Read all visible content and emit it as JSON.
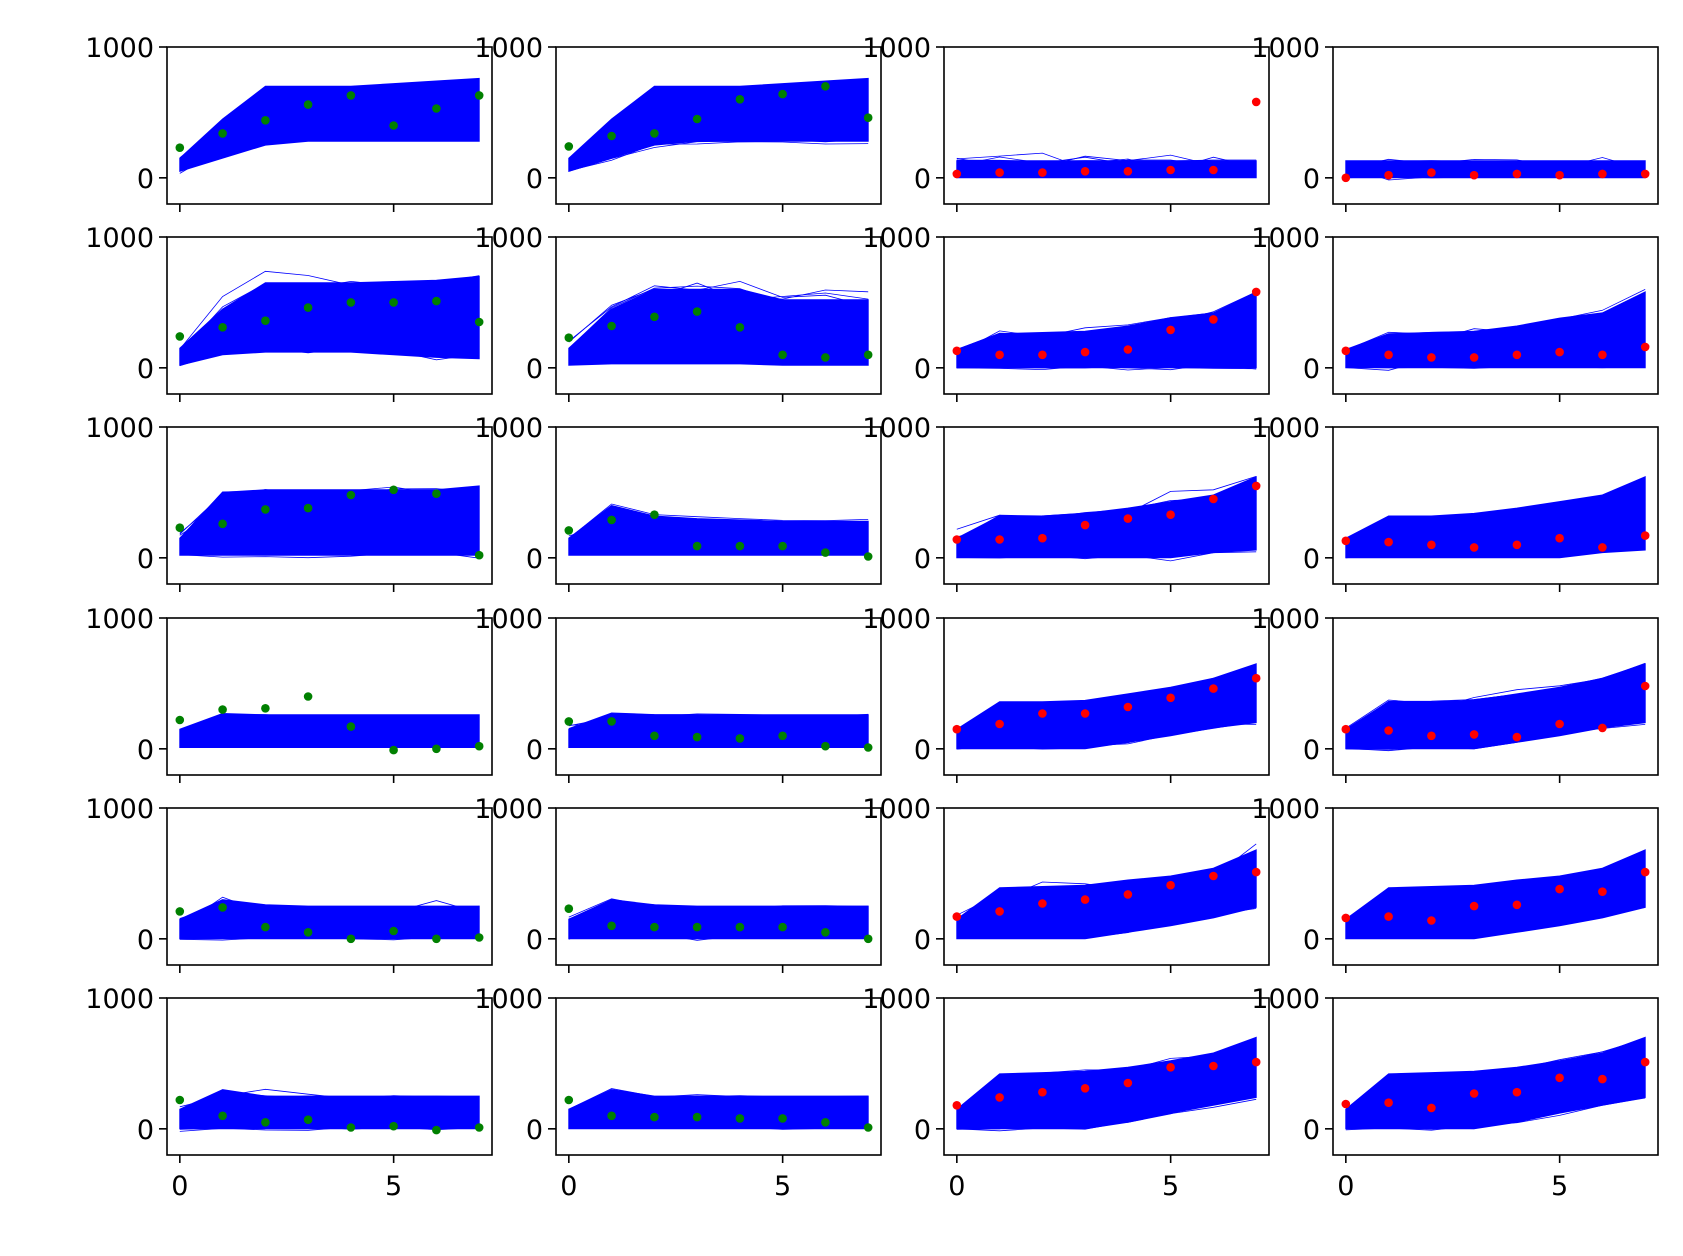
{
  "chart_data": {
    "type": "line",
    "layout": "grid",
    "rows": 6,
    "cols": 4,
    "x": [
      0,
      1,
      2,
      3,
      4,
      5,
      6,
      7
    ],
    "xlim": [
      -0.3,
      7.3
    ],
    "ylim": [
      -200,
      1000
    ],
    "xticks": [
      0,
      5
    ],
    "yticks": [
      0,
      1000
    ],
    "xtick_labels": [
      "0",
      "5"
    ],
    "ytick_labels": [
      "0",
      "1000"
    ],
    "grid": false,
    "legend": "none",
    "colors": {
      "ensemble": "#0000ff",
      "observed_left": "#008000",
      "observed_right": "#ff0000"
    },
    "panels": [
      {
        "row": 0,
        "col": 0,
        "marker_color": "#008000",
        "band_low": [
          50,
          150,
          250,
          280,
          280,
          280,
          280,
          280
        ],
        "band_high": [
          150,
          450,
          700,
          700,
          700,
          720,
          740,
          760
        ],
        "observed": [
          230,
          340,
          440,
          560,
          630,
          400,
          530,
          630
        ]
      },
      {
        "row": 0,
        "col": 1,
        "marker_color": "#008000",
        "band_low": [
          50,
          150,
          250,
          280,
          280,
          280,
          280,
          280
        ],
        "band_high": [
          150,
          450,
          700,
          700,
          700,
          720,
          740,
          760
        ],
        "observed": [
          240,
          320,
          340,
          450,
          600,
          640,
          700,
          460
        ]
      },
      {
        "row": 0,
        "col": 2,
        "marker_color": "#ff0000",
        "band_low": [
          0,
          0,
          0,
          0,
          0,
          0,
          0,
          0
        ],
        "band_high": [
          130,
          130,
          130,
          130,
          130,
          130,
          130,
          130
        ],
        "observed": [
          30,
          40,
          40,
          50,
          50,
          60,
          60,
          580
        ]
      },
      {
        "row": 0,
        "col": 3,
        "marker_color": "#ff0000",
        "band_low": [
          0,
          0,
          0,
          0,
          0,
          0,
          0,
          0
        ],
        "band_high": [
          130,
          130,
          130,
          130,
          130,
          130,
          130,
          130
        ],
        "observed": [
          0,
          20,
          40,
          20,
          30,
          20,
          30,
          30
        ]
      },
      {
        "row": 1,
        "col": 0,
        "marker_color": "#008000",
        "band_low": [
          20,
          100,
          120,
          120,
          120,
          100,
          80,
          70
        ],
        "band_high": [
          150,
          450,
          650,
          650,
          650,
          660,
          670,
          700
        ],
        "observed": [
          240,
          310,
          360,
          460,
          500,
          500,
          510,
          350
        ]
      },
      {
        "row": 1,
        "col": 1,
        "marker_color": "#008000",
        "band_low": [
          20,
          30,
          30,
          30,
          30,
          20,
          20,
          20
        ],
        "band_high": [
          150,
          450,
          600,
          600,
          600,
          520,
          520,
          520
        ],
        "observed": [
          230,
          320,
          390,
          430,
          310,
          100,
          80,
          100
        ]
      },
      {
        "row": 1,
        "col": 2,
        "marker_color": "#ff0000",
        "band_low": [
          0,
          0,
          0,
          0,
          0,
          0,
          0,
          0
        ],
        "band_high": [
          140,
          260,
          270,
          280,
          320,
          380,
          420,
          580
        ],
        "observed": [
          130,
          100,
          100,
          120,
          140,
          290,
          370,
          580
        ]
      },
      {
        "row": 1,
        "col": 3,
        "marker_color": "#ff0000",
        "band_low": [
          0,
          0,
          0,
          0,
          0,
          0,
          0,
          0
        ],
        "band_high": [
          140,
          260,
          270,
          280,
          320,
          380,
          420,
          580
        ],
        "observed": [
          130,
          100,
          80,
          80,
          100,
          120,
          100,
          160
        ]
      },
      {
        "row": 2,
        "col": 0,
        "marker_color": "#008000",
        "band_low": [
          20,
          20,
          20,
          20,
          20,
          20,
          20,
          20
        ],
        "band_high": [
          150,
          500,
          520,
          520,
          520,
          520,
          520,
          550
        ],
        "observed": [
          230,
          260,
          370,
          380,
          480,
          520,
          490,
          20
        ]
      },
      {
        "row": 2,
        "col": 1,
        "marker_color": "#008000",
        "band_low": [
          20,
          20,
          20,
          20,
          20,
          20,
          20,
          20
        ],
        "band_high": [
          150,
          400,
          320,
          300,
          290,
          280,
          280,
          280
        ],
        "observed": [
          210,
          290,
          330,
          90,
          90,
          90,
          40,
          10
        ]
      },
      {
        "row": 2,
        "col": 2,
        "marker_color": "#ff0000",
        "band_low": [
          0,
          0,
          0,
          0,
          0,
          0,
          40,
          60
        ],
        "band_high": [
          150,
          320,
          320,
          340,
          380,
          430,
          480,
          620
        ],
        "observed": [
          140,
          140,
          150,
          250,
          300,
          330,
          450,
          550
        ]
      },
      {
        "row": 2,
        "col": 3,
        "marker_color": "#ff0000",
        "band_low": [
          0,
          0,
          0,
          0,
          0,
          0,
          40,
          60
        ],
        "band_high": [
          150,
          320,
          320,
          340,
          380,
          430,
          480,
          620
        ],
        "observed": [
          130,
          120,
          100,
          80,
          100,
          150,
          80,
          170
        ]
      },
      {
        "row": 3,
        "col": 0,
        "marker_color": "#008000",
        "band_low": [
          10,
          10,
          10,
          10,
          10,
          10,
          10,
          10
        ],
        "band_high": [
          150,
          270,
          260,
          260,
          260,
          260,
          260,
          260
        ],
        "observed": [
          220,
          300,
          310,
          400,
          170,
          -10,
          0,
          20
        ]
      },
      {
        "row": 3,
        "col": 1,
        "marker_color": "#008000",
        "band_low": [
          10,
          10,
          10,
          10,
          10,
          10,
          10,
          10
        ],
        "band_high": [
          150,
          270,
          260,
          260,
          260,
          260,
          260,
          260
        ],
        "observed": [
          210,
          210,
          100,
          90,
          80,
          100,
          20,
          10
        ]
      },
      {
        "row": 3,
        "col": 2,
        "marker_color": "#ff0000",
        "band_low": [
          0,
          0,
          0,
          0,
          50,
          100,
          160,
          200
        ],
        "band_high": [
          150,
          360,
          360,
          370,
          420,
          470,
          540,
          650
        ],
        "observed": [
          150,
          190,
          270,
          270,
          320,
          390,
          460,
          540
        ]
      },
      {
        "row": 3,
        "col": 3,
        "marker_color": "#ff0000",
        "band_low": [
          0,
          0,
          0,
          0,
          50,
          100,
          160,
          200
        ],
        "band_high": [
          150,
          360,
          360,
          370,
          420,
          470,
          540,
          650
        ],
        "observed": [
          150,
          140,
          100,
          110,
          90,
          190,
          160,
          480
        ]
      },
      {
        "row": 4,
        "col": 0,
        "marker_color": "#008000",
        "band_low": [
          0,
          0,
          0,
          0,
          0,
          0,
          0,
          0
        ],
        "band_high": [
          150,
          300,
          260,
          250,
          250,
          250,
          250,
          250
        ],
        "observed": [
          210,
          240,
          90,
          50,
          0,
          60,
          0,
          10
        ]
      },
      {
        "row": 4,
        "col": 1,
        "marker_color": "#008000",
        "band_low": [
          0,
          0,
          0,
          0,
          0,
          0,
          0,
          0
        ],
        "band_high": [
          150,
          300,
          260,
          250,
          250,
          250,
          250,
          250
        ],
        "observed": [
          230,
          100,
          90,
          90,
          90,
          90,
          50,
          0
        ]
      },
      {
        "row": 4,
        "col": 2,
        "marker_color": "#ff0000",
        "band_low": [
          0,
          0,
          0,
          0,
          50,
          100,
          160,
          240
        ],
        "band_high": [
          150,
          390,
          400,
          410,
          450,
          480,
          540,
          680
        ],
        "observed": [
          170,
          210,
          270,
          300,
          340,
          410,
          480,
          510
        ]
      },
      {
        "row": 4,
        "col": 3,
        "marker_color": "#ff0000",
        "band_low": [
          0,
          0,
          0,
          0,
          50,
          100,
          160,
          240
        ],
        "band_high": [
          150,
          390,
          400,
          410,
          450,
          480,
          540,
          680
        ],
        "observed": [
          160,
          170,
          140,
          250,
          260,
          380,
          360,
          510
        ]
      },
      {
        "row": 5,
        "col": 0,
        "marker_color": "#008000",
        "band_low": [
          0,
          0,
          0,
          0,
          0,
          0,
          0,
          0
        ],
        "band_high": [
          150,
          300,
          250,
          250,
          250,
          250,
          250,
          250
        ],
        "observed": [
          220,
          100,
          50,
          70,
          10,
          20,
          -10,
          10
        ]
      },
      {
        "row": 5,
        "col": 1,
        "marker_color": "#008000",
        "band_low": [
          0,
          0,
          0,
          0,
          0,
          0,
          0,
          0
        ],
        "band_high": [
          150,
          300,
          250,
          250,
          250,
          250,
          250,
          250
        ],
        "observed": [
          220,
          100,
          90,
          90,
          80,
          80,
          50,
          10
        ]
      },
      {
        "row": 5,
        "col": 2,
        "marker_color": "#ff0000",
        "band_low": [
          0,
          0,
          0,
          0,
          50,
          120,
          180,
          240
        ],
        "band_high": [
          150,
          420,
          430,
          440,
          470,
          520,
          580,
          700
        ],
        "observed": [
          180,
          240,
          280,
          310,
          350,
          470,
          480,
          510
        ]
      },
      {
        "row": 5,
        "col": 3,
        "marker_color": "#ff0000",
        "band_low": [
          0,
          0,
          0,
          0,
          50,
          120,
          180,
          240
        ],
        "band_high": [
          150,
          420,
          430,
          440,
          470,
          520,
          580,
          700
        ],
        "observed": [
          190,
          200,
          160,
          270,
          280,
          390,
          380,
          510
        ]
      }
    ]
  }
}
